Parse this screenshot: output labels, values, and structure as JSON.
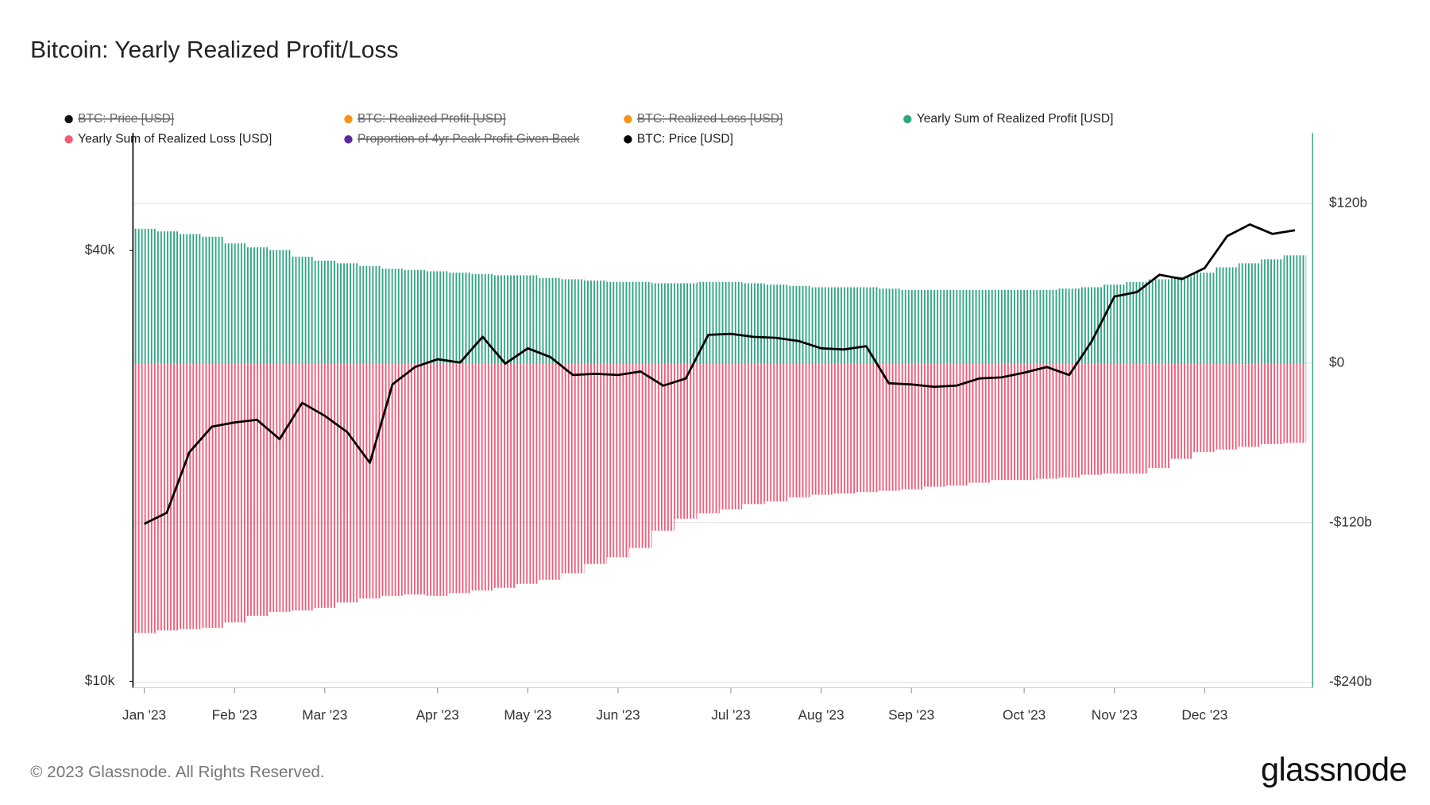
{
  "chart_data": {
    "type": "bar",
    "title": "Bitcoin: Yearly Realized Profit/Loss",
    "categories": [
      "Jan '23",
      null,
      null,
      null,
      "Feb '23",
      null,
      null,
      null,
      "Mar '23",
      null,
      null,
      null,
      null,
      "Apr '23",
      null,
      null,
      null,
      "May '23",
      null,
      null,
      null,
      "Jun '23",
      null,
      null,
      null,
      null,
      "Jul '23",
      null,
      null,
      null,
      "Aug '23",
      null,
      null,
      null,
      "Sep '23",
      null,
      null,
      null,
      null,
      "Oct '23",
      null,
      null,
      null,
      "Nov '23",
      null,
      null,
      null,
      "Dec '23",
      null,
      null,
      null,
      null
    ],
    "series": [
      {
        "name": "BTC: Price [USD]",
        "color": "#111111",
        "hidden": true
      },
      {
        "name": "BTC: Realized Profit [USD]",
        "color": "#f7931a",
        "hidden": true
      },
      {
        "name": "BTC: Realized Loss [USD]",
        "color": "#f7931a",
        "hidden": true
      },
      {
        "name": "Yearly Sum of Realized Profit [USD]",
        "color": "#2ea583",
        "axis": "y2",
        "values": [
          101000000000,
          99000000000,
          97000000000,
          95000000000,
          90000000000,
          87000000000,
          85000000000,
          80000000000,
          77000000000,
          75000000000,
          73000000000,
          71000000000,
          70000000000,
          69000000000,
          68000000000,
          67000000000,
          66000000000,
          66000000000,
          64000000000,
          63000000000,
          62000000000,
          61000000000,
          61000000000,
          60000000000,
          60000000000,
          61000000000,
          61000000000,
          60000000000,
          59000000000,
          58000000000,
          57000000000,
          57000000000,
          57000000000,
          56000000000,
          55000000000,
          55000000000,
          55000000000,
          55000000000,
          55000000000,
          55000000000,
          55000000000,
          56000000000,
          57000000000,
          59000000000,
          61000000000,
          63000000000,
          65000000000,
          68000000000,
          72000000000,
          75000000000,
          78000000000,
          81000000000
        ]
      },
      {
        "name": "Yearly Sum of Realized Loss [USD]",
        "color": "#ee5d78",
        "axis": "y2",
        "values": [
          -203000000000,
          -201000000000,
          -200000000000,
          -199000000000,
          -195000000000,
          -190000000000,
          -187000000000,
          -186000000000,
          -184000000000,
          -180000000000,
          -177000000000,
          -175000000000,
          -174000000000,
          -175000000000,
          -173000000000,
          -171000000000,
          -169000000000,
          -166000000000,
          -163000000000,
          -158000000000,
          -151000000000,
          -146000000000,
          -139000000000,
          -126000000000,
          -117000000000,
          -113000000000,
          -110000000000,
          -106000000000,
          -104000000000,
          -101000000000,
          -99000000000,
          -98000000000,
          -97000000000,
          -96000000000,
          -95000000000,
          -93000000000,
          -92000000000,
          -90000000000,
          -88000000000,
          -88000000000,
          -87000000000,
          -86000000000,
          -84000000000,
          -83000000000,
          -83000000000,
          -79000000000,
          -72000000000,
          -67000000000,
          -65000000000,
          -63000000000,
          -61000000000,
          -60000000000
        ]
      },
      {
        "name": "Proportion of 4yr Peak Profit Given Back",
        "color": "#5b2a9c",
        "hidden": true
      },
      {
        "name": "BTC: Price [USD]",
        "color": "#000000",
        "line": true,
        "values": [
          16600,
          17200,
          20900,
          22700,
          23000,
          23200,
          21800,
          24500,
          23500,
          22300,
          20200,
          26000,
          27500,
          28200,
          27900,
          30300,
          27800,
          29200,
          28400,
          26800,
          26900,
          26800,
          27100,
          25900,
          26500,
          30500,
          30600,
          30300,
          30200,
          29900,
          29200,
          29100,
          29400,
          26100,
          26000,
          25800,
          25900,
          26500,
          26600,
          27000,
          27500,
          26800,
          29900,
          34500,
          35000,
          37000,
          36500,
          37800,
          41900,
          43500,
          42200,
          42700
        ]
      }
    ],
    "ylog": true,
    "ylim": [
      9800,
      58400
    ],
    "yticks": [
      {
        "value": 10000,
        "label": "$10k"
      },
      {
        "value": 40000,
        "label": "$40k"
      }
    ],
    "y2lim": [
      -244000000000,
      173000000000
    ],
    "y2ticks": [
      {
        "value": -240000000000,
        "label": "-$240b"
      },
      {
        "value": -120000000000,
        "label": "-$120b"
      },
      {
        "value": 0,
        "label": "$0"
      },
      {
        "value": 120000000000,
        "label": "$120b"
      }
    ],
    "grid": true
  },
  "footer": "© 2023 Glassnode. All Rights Reserved.",
  "logo": "glassnode"
}
